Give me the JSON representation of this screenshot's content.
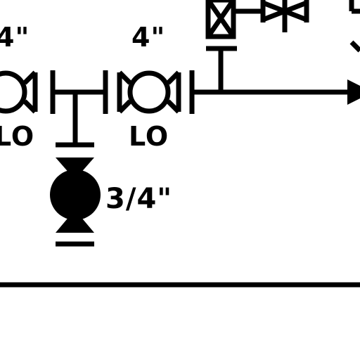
{
  "labels": {
    "size_left": "4\"",
    "size_mid": "4\"",
    "size_drain": "3/4\"",
    "pos_left": "LO",
    "pos_mid": "LO"
  },
  "icons": {
    "valve_left": "butterfly-valve-icon",
    "valve_mid": "butterfly-valve-icon",
    "valve_drain": "ball-valve-icon",
    "valve_gate": "gate-valve-icon",
    "valve_check": "check-valve-icon",
    "flow_arrow": "arrowhead-icon"
  },
  "colors": {
    "ink": "#000000",
    "paper": "#ffffff"
  }
}
